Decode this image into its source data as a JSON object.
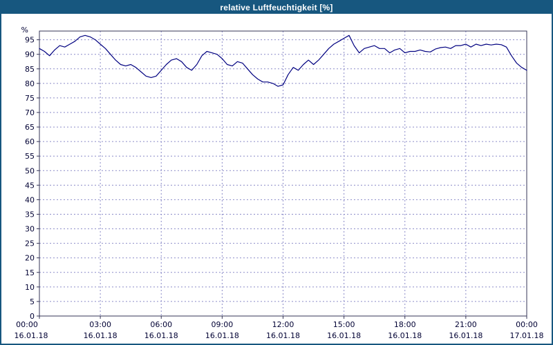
{
  "window": {
    "title": "relative Luftfeuchtigkeit [%]"
  },
  "colors": {
    "header_bg": "#17577f",
    "header_text": "#ffffff",
    "page_border": "#17577f",
    "line": "#000080",
    "grid": "#8a8ac8",
    "axis": "#333355",
    "tick_text": "#000033",
    "plot_bg": "#ffffff"
  },
  "chart_data": {
    "type": "line",
    "title": "relative Luftfeuchtigkeit [%]",
    "ylabel": "%",
    "unit_label": "%",
    "ylim": [
      0,
      98
    ],
    "y_tick_min": 0,
    "y_tick_max": 95,
    "y_tick_step": 5,
    "x_range_hours": [
      0,
      24
    ],
    "x_start_hour": 0,
    "x_step_hours": 0.25,
    "grid": "dashed",
    "legend": "none",
    "x_ticks": [
      {
        "hour": 0,
        "time": "00:00",
        "date": "16.01.18"
      },
      {
        "hour": 3,
        "time": "03:00",
        "date": "16.01.18"
      },
      {
        "hour": 6,
        "time": "06:00",
        "date": "16.01.18"
      },
      {
        "hour": 9,
        "time": "09:00",
        "date": "16.01.18"
      },
      {
        "hour": 12,
        "time": "12:00",
        "date": "16.01.18"
      },
      {
        "hour": 15,
        "time": "15:00",
        "date": "16.01.18"
      },
      {
        "hour": 18,
        "time": "18:00",
        "date": "16.01.18"
      },
      {
        "hour": 21,
        "time": "21:00",
        "date": "16.01.18"
      },
      {
        "hour": 24,
        "time": "00:00",
        "date": "17.01.18"
      }
    ],
    "values": [
      92.0,
      91.0,
      89.5,
      91.5,
      93.0,
      92.5,
      93.5,
      94.5,
      96.0,
      96.5,
      96.0,
      95.0,
      93.5,
      92.0,
      90.0,
      88.0,
      86.5,
      86.0,
      86.5,
      85.5,
      84.0,
      82.5,
      82.0,
      82.5,
      84.5,
      86.5,
      88.0,
      88.5,
      87.5,
      85.5,
      84.5,
      86.5,
      89.5,
      91.0,
      90.5,
      90.0,
      88.5,
      86.5,
      86.0,
      87.5,
      87.0,
      85.0,
      83.0,
      81.5,
      80.5,
      80.5,
      80.0,
      79.0,
      79.5,
      83.0,
      85.5,
      84.5,
      86.5,
      88.0,
      86.5,
      88.0,
      90.0,
      92.0,
      93.5,
      94.5,
      95.5,
      96.5,
      93.0,
      90.5,
      92.0,
      92.5,
      93.0,
      92.0,
      92.0,
      90.5,
      91.5,
      92.0,
      90.5,
      91.0,
      91.0,
      91.5,
      91.0,
      90.8,
      91.8,
      92.3,
      92.5,
      92.0,
      93.0,
      93.0,
      93.5,
      92.5,
      93.5,
      93.0,
      93.5,
      93.2,
      93.5,
      93.3,
      92.5,
      89.5,
      87.0,
      85.5,
      84.5
    ]
  }
}
